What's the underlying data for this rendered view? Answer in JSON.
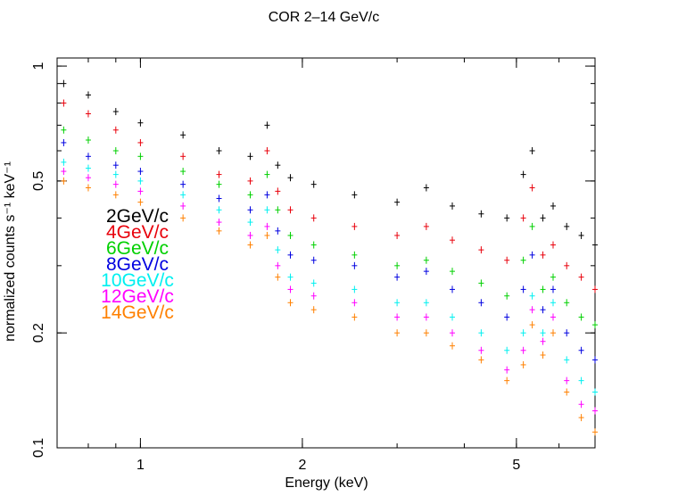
{
  "chart_data": {
    "type": "scatter",
    "title": "COR 2–14 GeV/c",
    "xlabel": "Energy (keV)",
    "ylabel": "normalized counts s⁻¹ keV⁻¹",
    "xscale": "log",
    "yscale": "log",
    "xlim": [
      0.7,
      7.0
    ],
    "ylim": [
      0.1,
      1.05
    ],
    "x_ticks": [
      {
        "value": 1,
        "label": "1"
      },
      {
        "value": 2,
        "label": "2"
      },
      {
        "value": 5,
        "label": "5"
      }
    ],
    "y_ticks": [
      {
        "value": 0.1,
        "label": "0.1"
      },
      {
        "value": 0.2,
        "label": "0.2"
      },
      {
        "value": 0.5,
        "label": "0.5"
      },
      {
        "value": 1,
        "label": "1"
      }
    ],
    "legend_position": "center-left",
    "series": [
      {
        "name": "2GeV/c",
        "color": "#000000",
        "x": [
          0.72,
          0.8,
          0.9,
          1.0,
          1.2,
          1.4,
          1.6,
          1.72,
          1.8,
          1.9,
          2.1,
          2.5,
          3.0,
          3.4,
          3.8,
          4.3,
          4.8,
          5.15,
          5.35,
          5.6,
          5.85,
          6.2,
          6.6,
          7.0
        ],
        "y": [
          0.9,
          0.84,
          0.76,
          0.71,
          0.66,
          0.6,
          0.58,
          0.7,
          0.55,
          0.51,
          0.49,
          0.46,
          0.44,
          0.48,
          0.43,
          0.41,
          0.4,
          0.52,
          0.6,
          0.4,
          0.43,
          0.38,
          0.36,
          0.34
        ]
      },
      {
        "name": "4GeV/c",
        "color": "#e8000b",
        "x": [
          0.72,
          0.8,
          0.9,
          1.0,
          1.2,
          1.4,
          1.6,
          1.72,
          1.8,
          1.9,
          2.1,
          2.5,
          3.0,
          3.4,
          3.8,
          4.3,
          4.8,
          5.15,
          5.35,
          5.6,
          5.85,
          6.2,
          6.6,
          7.0
        ],
        "y": [
          0.8,
          0.75,
          0.68,
          0.63,
          0.58,
          0.52,
          0.5,
          0.6,
          0.47,
          0.42,
          0.4,
          0.38,
          0.36,
          0.38,
          0.35,
          0.33,
          0.31,
          0.4,
          0.48,
          0.32,
          0.34,
          0.3,
          0.28,
          0.26
        ]
      },
      {
        "name": "6GeV/c",
        "color": "#00d000",
        "x": [
          0.72,
          0.8,
          0.9,
          1.0,
          1.2,
          1.4,
          1.6,
          1.72,
          1.8,
          1.9,
          2.1,
          2.5,
          3.0,
          3.4,
          3.8,
          4.3,
          4.8,
          5.15,
          5.35,
          5.6,
          5.85,
          6.2,
          6.6,
          7.0
        ],
        "y": [
          0.68,
          0.64,
          0.6,
          0.58,
          0.53,
          0.49,
          0.46,
          0.52,
          0.42,
          0.36,
          0.34,
          0.32,
          0.3,
          0.31,
          0.29,
          0.27,
          0.25,
          0.31,
          0.38,
          0.26,
          0.28,
          0.24,
          0.22,
          0.21
        ]
      },
      {
        "name": "8GeV/c",
        "color": "#0000e0",
        "x": [
          0.72,
          0.8,
          0.9,
          1.0,
          1.2,
          1.4,
          1.6,
          1.72,
          1.8,
          1.9,
          2.1,
          2.5,
          3.0,
          3.4,
          3.8,
          4.3,
          4.8,
          5.15,
          5.35,
          5.6,
          5.85,
          6.2,
          6.6,
          7.0
        ],
        "y": [
          0.63,
          0.58,
          0.55,
          0.53,
          0.49,
          0.45,
          0.42,
          0.46,
          0.37,
          0.32,
          0.31,
          0.3,
          0.28,
          0.29,
          0.26,
          0.24,
          0.22,
          0.26,
          0.32,
          0.23,
          0.26,
          0.2,
          0.18,
          0.17
        ]
      },
      {
        "name": "10GeV/c",
        "color": "#00f0f0",
        "x": [
          0.72,
          0.8,
          0.9,
          1.0,
          1.2,
          1.4,
          1.6,
          1.72,
          1.8,
          1.9,
          2.1,
          2.5,
          3.0,
          3.4,
          3.8,
          4.3,
          4.8,
          5.15,
          5.35,
          5.6,
          5.85,
          6.2,
          6.6,
          7.0
        ],
        "y": [
          0.56,
          0.54,
          0.52,
          0.5,
          0.46,
          0.42,
          0.39,
          0.42,
          0.33,
          0.28,
          0.27,
          0.26,
          0.24,
          0.24,
          0.22,
          0.2,
          0.18,
          0.2,
          0.25,
          0.2,
          0.24,
          0.17,
          0.15,
          0.14
        ]
      },
      {
        "name": "12GeV/c",
        "color": "#ff00ff",
        "x": [
          0.72,
          0.8,
          0.9,
          1.0,
          1.2,
          1.4,
          1.6,
          1.72,
          1.8,
          1.9,
          2.1,
          2.5,
          3.0,
          3.4,
          3.8,
          4.3,
          4.8,
          5.15,
          5.35,
          5.6,
          5.85,
          6.2,
          6.6,
          7.0
        ],
        "y": [
          0.53,
          0.51,
          0.49,
          0.47,
          0.43,
          0.39,
          0.36,
          0.38,
          0.3,
          0.26,
          0.25,
          0.24,
          0.22,
          0.22,
          0.2,
          0.18,
          0.16,
          0.18,
          0.23,
          0.19,
          0.22,
          0.15,
          0.13,
          0.125
        ]
      },
      {
        "name": "14GeV/c",
        "color": "#ff8000",
        "x": [
          0.72,
          0.8,
          0.9,
          1.0,
          1.2,
          1.4,
          1.6,
          1.72,
          1.8,
          1.9,
          2.1,
          2.5,
          3.0,
          3.4,
          3.8,
          4.3,
          4.8,
          5.15,
          5.35,
          5.6,
          5.85,
          6.2,
          6.6,
          7.0
        ],
        "y": [
          0.5,
          0.48,
          0.46,
          0.44,
          0.4,
          0.37,
          0.34,
          0.36,
          0.28,
          0.24,
          0.23,
          0.22,
          0.2,
          0.2,
          0.185,
          0.17,
          0.15,
          0.165,
          0.21,
          0.175,
          0.2,
          0.14,
          0.12,
          0.11
        ]
      }
    ]
  }
}
